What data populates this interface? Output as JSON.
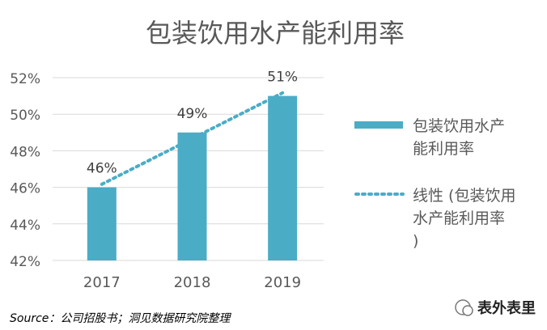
{
  "chart_data": {
    "type": "bar",
    "title": "包装饮用水产能利用率",
    "categories": [
      "2017",
      "2018",
      "2019"
    ],
    "series": [
      {
        "name": "包装饮用水产能利用率",
        "values": [
          46,
          49,
          51
        ],
        "color": "#4bacc6"
      }
    ],
    "data_labels": [
      "46%",
      "49%",
      "51%"
    ],
    "trendline": {
      "name": "线性 (包装饮用水产能利用率)",
      "type": "linear",
      "style": "dotted",
      "color": "#4bacc6"
    },
    "ylim": [
      42,
      52
    ],
    "yticks": [
      "42%",
      "44%",
      "46%",
      "48%",
      "50%",
      "52%"
    ],
    "grid": true,
    "legend_position": "right"
  },
  "footer": {
    "source": "Source：公司招股书；洞见数据研究院整理",
    "watermark": "表外表里"
  },
  "colors": {
    "bar": "#4bacc6",
    "grid": "#d9d9d9",
    "axis_text": "#595959",
    "title_text": "#595959"
  }
}
